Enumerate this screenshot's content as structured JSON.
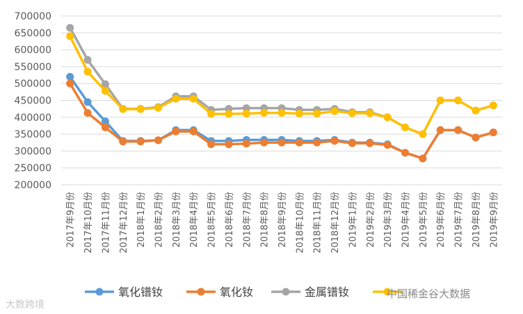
{
  "chart_data": {
    "type": "line",
    "title": "",
    "xlabel": "",
    "ylabel": "",
    "ylim": [
      200000,
      700000
    ],
    "yticks": [
      "200000",
      "250000",
      "300000",
      "350000",
      "400000",
      "450000",
      "500000",
      "550000",
      "600000",
      "650000",
      "700000"
    ],
    "categories": [
      "2017年9月份",
      "2017年10月份",
      "2017年11月份",
      "2017年12月份",
      "2018年1月份",
      "2018年2月份",
      "2018年3月份",
      "2018年4月份",
      "2018年5月份",
      "2018年6月份",
      "2018年7月份",
      "2018年8月份",
      "2018年9月份",
      "2018年10月份",
      "2018年11月份",
      "2018年12月份",
      "2019年1月份",
      "2019年2月份",
      "2019年3月份",
      "2019年4月份",
      "2019年5月份",
      "2019年6月份",
      "2019年7月份",
      "2019年8月份",
      "2019年9月份"
    ],
    "series": [
      {
        "name": "氧化镨钕",
        "color": "#5b9bd5",
        "values": [
          520000,
          445000,
          388000,
          330000,
          330000,
          332000,
          362000,
          362000,
          330000,
          330000,
          333000,
          333000,
          333000,
          330000,
          330000,
          333000,
          325000,
          325000,
          320000,
          295000,
          278000,
          362000,
          362000,
          340000,
          355000
        ]
      },
      {
        "name": "氧化钕",
        "color": "#ed7d31",
        "values": [
          500000,
          413000,
          370000,
          328000,
          328000,
          332000,
          358000,
          358000,
          320000,
          320000,
          322000,
          325000,
          325000,
          325000,
          325000,
          330000,
          323000,
          323000,
          318000,
          295000,
          278000,
          362000,
          362000,
          340000,
          355000
        ]
      },
      {
        "name": "金属镨钕",
        "color": "#a5a5a5",
        "values": [
          665000,
          570000,
          498000,
          425000,
          425000,
          430000,
          462000,
          462000,
          422000,
          425000,
          427000,
          427000,
          427000,
          422000,
          422000,
          425000,
          415000,
          415000,
          400000,
          370000,
          350000,
          450000,
          450000,
          420000,
          435000
        ]
      },
      {
        "name": "",
        "color": "#ffc000",
        "values": [
          640000,
          535000,
          478000,
          424000,
          424000,
          428000,
          455000,
          455000,
          410000,
          410000,
          411000,
          413000,
          413000,
          411000,
          411000,
          418000,
          412000,
          412000,
          400000,
          370000,
          350000,
          450000,
          450000,
          420000,
          435000
        ]
      }
    ],
    "legend_position": "bottom",
    "grid": true
  },
  "watermarks": {
    "left": "大数跨境",
    "right": "中国稀金谷大数据"
  }
}
